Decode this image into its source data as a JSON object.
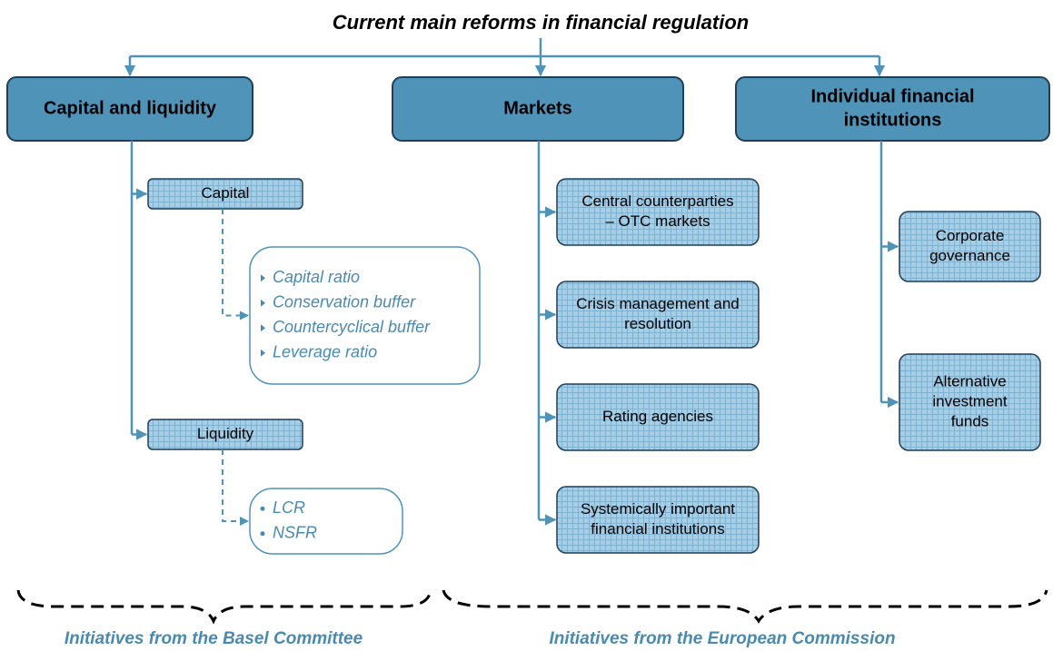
{
  "title": "Current main reforms in financial regulation",
  "columns": [
    {
      "heading": [
        "Capital and liquidity"
      ],
      "items": [
        {
          "label": [
            "Capital"
          ],
          "details": [
            "Capital ratio",
            "Conservation buffer",
            "Countercyclical buffer",
            "Leverage ratio"
          ]
        },
        {
          "label": [
            "Liquidity"
          ],
          "details": [
            "LCR",
            "NSFR"
          ]
        }
      ]
    },
    {
      "heading": [
        "Markets"
      ],
      "items": [
        {
          "label": [
            "Central counterparties",
            "– OTC markets"
          ]
        },
        {
          "label": [
            "Crisis management and",
            "resolution"
          ]
        },
        {
          "label": [
            "Rating agencies"
          ]
        },
        {
          "label": [
            "Systemically important",
            "financial institutions"
          ]
        }
      ]
    },
    {
      "heading": [
        "Individual financial",
        "institutions"
      ],
      "items": [
        {
          "label": [
            "Corporate",
            "governance"
          ]
        },
        {
          "label": [
            "Alternative",
            "investment",
            "funds"
          ]
        }
      ]
    }
  ],
  "footers": [
    "Initiatives from the Basel Committee",
    "Initiatives from the European Commission"
  ]
}
